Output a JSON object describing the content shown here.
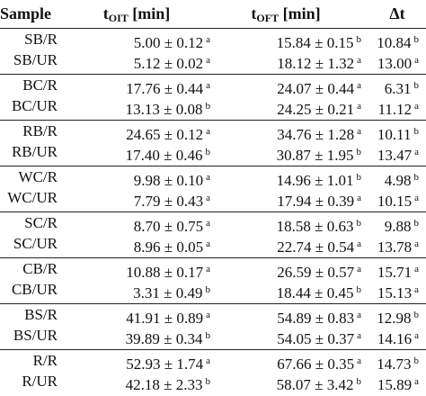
{
  "header": {
    "sample": "Sample",
    "oit_main": "t",
    "oit_sub": "OIT",
    "oit_unit": "[min]",
    "oft_main": "t",
    "oft_sub": "OFT",
    "oft_unit": "[min]",
    "delta_t": "Δt"
  },
  "rows": [
    {
      "sample": "SB/R",
      "oit": "5.00 ± 0.12",
      "oit_sup": "a",
      "oft": "15.84 ± 0.15",
      "oft_sup": "b",
      "dt": "10.84",
      "dt_sup": "b"
    },
    {
      "sample": "SB/UR",
      "oit": "5.12 ± 0.02",
      "oit_sup": "a",
      "oft": "18.12 ± 1.32",
      "oft_sup": "a",
      "dt": "13.00",
      "dt_sup": "a"
    },
    {
      "sample": "BC/R",
      "oit": "17.76 ± 0.44",
      "oit_sup": "a",
      "oft": "24.07 ± 0.44",
      "oft_sup": "a",
      "dt": "6.31",
      "dt_sup": "b"
    },
    {
      "sample": "BC/UR",
      "oit": "13.13 ± 0.08",
      "oit_sup": "b",
      "oft": "24.25 ± 0.21",
      "oft_sup": "a",
      "dt": "11.12",
      "dt_sup": "a"
    },
    {
      "sample": "RB/R",
      "oit": "24.65 ± 0.12",
      "oit_sup": "a",
      "oft": "34.76 ± 1.28",
      "oft_sup": "a",
      "dt": "10.11",
      "dt_sup": "b"
    },
    {
      "sample": "RB/UR",
      "oit": "17.40 ± 0.46",
      "oit_sup": "b",
      "oft": "30.87 ± 1.95",
      "oft_sup": "b",
      "dt": "13.47",
      "dt_sup": "a"
    },
    {
      "sample": "WC/R",
      "oit": "9.98 ± 0.10",
      "oit_sup": "a",
      "oft": "14.96 ± 1.01",
      "oft_sup": "b",
      "dt": "4.98",
      "dt_sup": "b"
    },
    {
      "sample": "WC/UR",
      "oit": "7.79 ± 0.43",
      "oit_sup": "a",
      "oft": "17.94 ± 0.39",
      "oft_sup": "a",
      "dt": "10.15",
      "dt_sup": "a"
    },
    {
      "sample": "SC/R",
      "oit": "8.70 ± 0.75",
      "oit_sup": "a",
      "oft": "18.58 ± 0.63",
      "oft_sup": "b",
      "dt": "9.88",
      "dt_sup": "b"
    },
    {
      "sample": "SC/UR",
      "oit": "8.96 ± 0.05",
      "oit_sup": "a",
      "oft": "22.74 ± 0.54",
      "oft_sup": "a",
      "dt": "13.78",
      "dt_sup": "a"
    },
    {
      "sample": "CB/R",
      "oit": "10.88 ± 0.17",
      "oit_sup": "a",
      "oft": "26.59 ± 0.57",
      "oft_sup": "a",
      "dt": "15.71",
      "dt_sup": "a"
    },
    {
      "sample": "CB/UR",
      "oit": "3.31 ± 0.49",
      "oit_sup": "b",
      "oft": "18.44 ± 0.45",
      "oft_sup": "b",
      "dt": "15.13",
      "dt_sup": "a"
    },
    {
      "sample": "BS/R",
      "oit": "41.91 ± 0.89",
      "oit_sup": "a",
      "oft": "54.89 ± 0.83",
      "oft_sup": "a",
      "dt": "12.98",
      "dt_sup": "b"
    },
    {
      "sample": "BS/UR",
      "oit": "39.89 ± 0.34",
      "oit_sup": "b",
      "oft": "54.05 ± 0.37",
      "oft_sup": "a",
      "dt": "14.16",
      "dt_sup": "a"
    },
    {
      "sample": "R/R",
      "oit": "52.93 ± 1.74",
      "oit_sup": "a",
      "oft": "67.66 ± 0.35",
      "oft_sup": "a",
      "dt": "14.73",
      "dt_sup": "b"
    },
    {
      "sample": "R/UR",
      "oit": "42.18 ± 2.33",
      "oit_sup": "b",
      "oft": "58.07 ± 3.42",
      "oft_sup": "b",
      "dt": "15.89",
      "dt_sup": "a"
    }
  ]
}
